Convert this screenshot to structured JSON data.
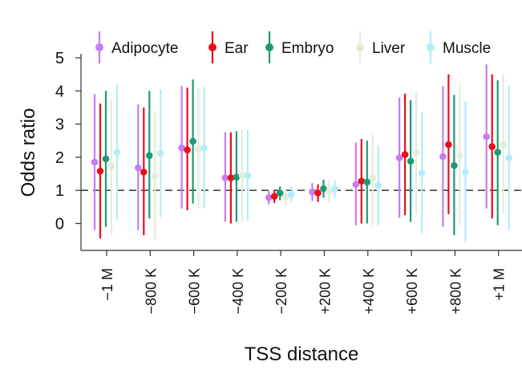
{
  "chart_data": {
    "type": "scatter",
    "subtype": "point-with-error-bars",
    "title": "",
    "xlabel": "TSS distance",
    "ylabel": "Odds ratio",
    "categories": [
      "−1 M",
      "−800 K",
      "−600 K",
      "−400 K",
      "−200 K",
      "+200 K",
      "+400 K",
      "+600 K",
      "+800 K",
      "+1 M"
    ],
    "ylim": [
      -0.8,
      5.1
    ],
    "yticks": [
      0,
      1,
      2,
      3,
      4,
      5
    ],
    "reference_line": {
      "y": 1,
      "style": "dashed"
    },
    "legend_position": "top",
    "series": [
      {
        "name": "Adipocyte",
        "color": "#c77cf0",
        "values": [
          1.85,
          1.68,
          2.28,
          1.38,
          0.78,
          0.95,
          1.18,
          1.98,
          2.02,
          2.62
        ],
        "lower": [
          -0.2,
          -0.2,
          0.45,
          0.05,
          0.58,
          0.68,
          -0.05,
          0.18,
          -0.1,
          0.45
        ],
        "upper": [
          3.9,
          3.6,
          4.15,
          2.75,
          0.98,
          1.22,
          2.45,
          3.8,
          4.15,
          4.8
        ]
      },
      {
        "name": "Ear",
        "color": "#e8101a",
        "values": [
          1.58,
          1.55,
          2.22,
          1.38,
          0.82,
          0.92,
          1.28,
          2.08,
          2.38,
          2.32
        ],
        "lower": [
          -0.45,
          -0.35,
          0.4,
          0.0,
          0.62,
          0.65,
          0.0,
          0.25,
          0.28,
          0.15
        ],
        "upper": [
          3.62,
          3.5,
          4.1,
          2.75,
          1.02,
          1.18,
          2.55,
          3.92,
          4.5,
          4.5
        ]
      },
      {
        "name": "Embryo",
        "color": "#1e9a78",
        "values": [
          1.95,
          2.05,
          2.48,
          1.4,
          0.92,
          1.05,
          1.25,
          1.88,
          1.75,
          2.15
        ],
        "lower": [
          -0.1,
          0.15,
          0.6,
          0.05,
          0.7,
          0.78,
          0.0,
          0.05,
          -0.35,
          -0.05
        ],
        "upper": [
          4.0,
          4.0,
          4.35,
          2.78,
          1.12,
          1.32,
          2.5,
          3.72,
          3.88,
          4.32
        ]
      },
      {
        "name": "Liver",
        "color": "#e2edd8",
        "values": [
          1.72,
          1.42,
          2.25,
          1.45,
          0.8,
          0.98,
          1.38,
          2.15,
          2.05,
          2.38
        ],
        "lower": [
          -0.35,
          -0.5,
          0.45,
          0.05,
          0.55,
          0.65,
          -0.05,
          0.3,
          -0.05,
          0.3
        ],
        "upper": [
          3.75,
          3.35,
          4.1,
          2.85,
          1.05,
          1.3,
          2.68,
          4.0,
          4.2,
          4.5
        ]
      },
      {
        "name": "Muscle",
        "color": "#b3edf8",
        "values": [
          2.15,
          2.12,
          2.28,
          1.45,
          0.88,
          1.05,
          1.15,
          1.52,
          1.55,
          1.98
        ],
        "lower": [
          0.1,
          0.2,
          0.45,
          0.1,
          0.65,
          0.78,
          -0.05,
          -0.3,
          -0.55,
          -0.2
        ],
        "upper": [
          4.2,
          4.05,
          4.12,
          2.82,
          1.12,
          1.32,
          2.35,
          3.35,
          3.7,
          4.15
        ]
      }
    ]
  }
}
